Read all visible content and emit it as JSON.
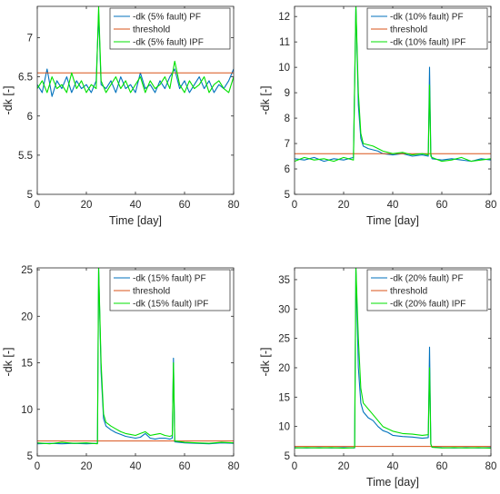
{
  "chart_data": [
    {
      "type": "line",
      "xlabel": "Time [day]",
      "ylabel": "-dk [-]",
      "xlim": [
        0,
        80
      ],
      "ylim": [
        5,
        7.4
      ],
      "xticks": [
        0,
        20,
        40,
        60,
        80
      ],
      "yticks": [
        5,
        5.5,
        6,
        6.5,
        7
      ],
      "grid": false,
      "legend": "top-right",
      "series": [
        {
          "name": "-dk (5% fault) PF",
          "color": "#0072BD",
          "x": [
            0,
            2,
            4,
            6,
            8,
            10,
            12,
            14,
            16,
            18,
            20,
            22,
            24,
            25,
            26,
            28,
            30,
            32,
            34,
            36,
            38,
            40,
            42,
            44,
            46,
            48,
            50,
            52,
            54,
            56,
            58,
            60,
            62,
            64,
            66,
            68,
            70,
            72,
            74,
            76,
            78,
            80
          ],
          "y": [
            6.4,
            6.3,
            6.6,
            6.25,
            6.45,
            6.35,
            6.5,
            6.3,
            6.45,
            6.35,
            6.4,
            6.3,
            6.45,
            7.3,
            6.4,
            6.35,
            6.45,
            6.3,
            6.5,
            6.35,
            6.4,
            6.3,
            6.55,
            6.35,
            6.4,
            6.3,
            6.45,
            6.35,
            6.5,
            6.6,
            6.35,
            6.45,
            6.3,
            6.4,
            6.5,
            6.35,
            6.45,
            6.3,
            6.4,
            6.35,
            6.45,
            6.6
          ]
        },
        {
          "name": "threshold",
          "color": "#D95319",
          "x": [
            0,
            80
          ],
          "y": [
            6.55,
            6.55
          ]
        },
        {
          "name": "-dk (5% fault) IPF",
          "color": "#00E000",
          "x": [
            0,
            2,
            4,
            6,
            8,
            10,
            12,
            14,
            16,
            18,
            20,
            22,
            24,
            25,
            26,
            28,
            30,
            32,
            34,
            36,
            38,
            40,
            42,
            44,
            46,
            48,
            50,
            52,
            54,
            56,
            58,
            60,
            62,
            64,
            66,
            68,
            70,
            72,
            74,
            76,
            78,
            80
          ],
          "y": [
            6.35,
            6.45,
            6.3,
            6.5,
            6.35,
            6.4,
            6.3,
            6.55,
            6.35,
            6.45,
            6.3,
            6.4,
            6.35,
            7.4,
            6.45,
            6.3,
            6.4,
            6.5,
            6.35,
            6.45,
            6.3,
            6.4,
            6.5,
            6.3,
            6.45,
            6.35,
            6.4,
            6.5,
            6.35,
            6.7,
            6.4,
            6.3,
            6.45,
            6.35,
            6.4,
            6.5,
            6.3,
            6.4,
            6.45,
            6.35,
            6.3,
            6.5
          ]
        }
      ]
    },
    {
      "type": "line",
      "xlabel": "Time [day]",
      "ylabel": "-dk [-]",
      "xlim": [
        0,
        80
      ],
      "ylim": [
        5,
        12.4
      ],
      "xticks": [
        0,
        20,
        40,
        60,
        80
      ],
      "yticks": [
        5,
        6,
        7,
        8,
        9,
        10,
        11,
        12
      ],
      "grid": false,
      "legend": "top-right",
      "series": [
        {
          "name": "-dk (10% fault) PF",
          "color": "#0072BD",
          "x": [
            0,
            4,
            8,
            12,
            16,
            20,
            24,
            25,
            26,
            27,
            28,
            30,
            32,
            34,
            36,
            40,
            44,
            48,
            52,
            54.5,
            55,
            55.5,
            56,
            60,
            64,
            68,
            72,
            76,
            80
          ],
          "y": [
            6.4,
            6.35,
            6.45,
            6.3,
            6.4,
            6.35,
            6.45,
            12.4,
            8.5,
            7.2,
            6.9,
            6.8,
            6.75,
            6.7,
            6.6,
            6.55,
            6.6,
            6.5,
            6.55,
            6.5,
            10.0,
            6.6,
            6.4,
            6.35,
            6.4,
            6.35,
            6.3,
            6.4,
            6.35
          ]
        },
        {
          "name": "threshold",
          "color": "#D95319",
          "x": [
            0,
            80
          ],
          "y": [
            6.6,
            6.6
          ]
        },
        {
          "name": "-dk (10% fault) IPF",
          "color": "#00E000",
          "x": [
            0,
            4,
            8,
            12,
            16,
            20,
            24,
            25,
            26,
            27,
            28,
            30,
            32,
            34,
            36,
            40,
            44,
            48,
            52,
            54.5,
            55,
            55.5,
            56,
            60,
            64,
            68,
            72,
            76,
            80
          ],
          "y": [
            6.3,
            6.45,
            6.35,
            6.4,
            6.3,
            6.45,
            6.35,
            12.4,
            9.0,
            7.4,
            7.0,
            6.95,
            6.9,
            6.8,
            6.7,
            6.6,
            6.65,
            6.55,
            6.6,
            6.55,
            9.3,
            6.5,
            6.45,
            6.3,
            6.35,
            6.45,
            6.3,
            6.35,
            6.4
          ]
        }
      ]
    },
    {
      "type": "line",
      "xlabel": "",
      "ylabel": "-dk [-]",
      "xlim": [
        0,
        80
      ],
      "ylim": [
        5,
        25.2
      ],
      "xticks": [
        0,
        20,
        40,
        60,
        80
      ],
      "yticks": [
        5,
        10,
        15,
        20,
        25
      ],
      "grid": false,
      "legend": "top-right",
      "series": [
        {
          "name": "-dk (15% fault) PF",
          "color": "#0072BD",
          "x": [
            0,
            5,
            10,
            15,
            20,
            24.5,
            25,
            26,
            27,
            28,
            30,
            32,
            34,
            36,
            38,
            40,
            42,
            44,
            46,
            48,
            50,
            52,
            54,
            55,
            55.5,
            56,
            60,
            65,
            70,
            75,
            80
          ],
          "y": [
            6.3,
            6.35,
            6.3,
            6.35,
            6.3,
            6.35,
            25.2,
            14.0,
            9.0,
            8.2,
            7.8,
            7.5,
            7.3,
            7.1,
            7.0,
            6.9,
            7.0,
            7.4,
            6.9,
            6.8,
            6.9,
            6.9,
            6.8,
            6.9,
            15.5,
            6.5,
            6.4,
            6.35,
            6.3,
            6.4,
            6.35
          ]
        },
        {
          "name": "threshold",
          "color": "#D95319",
          "x": [
            0,
            80
          ],
          "y": [
            6.6,
            6.6
          ]
        },
        {
          "name": "-dk (15% fault) IPF",
          "color": "#00E000",
          "x": [
            0,
            5,
            10,
            15,
            20,
            24.5,
            25,
            26,
            27,
            28,
            30,
            32,
            34,
            36,
            38,
            40,
            42,
            44,
            46,
            48,
            50,
            52,
            54,
            55,
            55.5,
            56,
            60,
            65,
            70,
            75,
            80
          ],
          "y": [
            6.4,
            6.3,
            6.45,
            6.35,
            6.4,
            6.3,
            25.2,
            15.0,
            9.5,
            8.6,
            8.2,
            7.9,
            7.6,
            7.4,
            7.3,
            7.2,
            7.4,
            7.6,
            7.2,
            7.3,
            7.4,
            7.2,
            7.1,
            7.2,
            15.0,
            6.6,
            6.45,
            6.4,
            6.35,
            6.45,
            6.4
          ]
        }
      ]
    },
    {
      "type": "line",
      "xlabel": "Time [day]",
      "ylabel": "-dk [-]",
      "xlim": [
        0,
        80
      ],
      "ylim": [
        5,
        37
      ],
      "xticks": [
        0,
        20,
        40,
        60,
        80
      ],
      "yticks": [
        5,
        10,
        15,
        20,
        25,
        30,
        35
      ],
      "grid": false,
      "legend": "top-right",
      "series": [
        {
          "name": "-dk (20% fault) PF",
          "color": "#0072BD",
          "x": [
            0,
            5,
            10,
            15,
            20,
            24.5,
            25,
            26,
            27,
            28,
            30,
            32,
            34,
            36,
            38,
            40,
            44,
            48,
            52,
            54.5,
            55,
            55.5,
            56,
            60,
            65,
            70,
            75,
            80
          ],
          "y": [
            6.4,
            6.35,
            6.4,
            6.35,
            6.4,
            6.35,
            37.0,
            20.0,
            14.0,
            12.5,
            11.5,
            11.0,
            10.0,
            9.3,
            9.0,
            8.5,
            8.3,
            8.2,
            8.0,
            8.1,
            23.5,
            7.0,
            6.5,
            6.4,
            6.35,
            6.4,
            6.35,
            6.4
          ]
        },
        {
          "name": "threshold",
          "color": "#D95319",
          "x": [
            0,
            80
          ],
          "y": [
            6.6,
            6.6
          ]
        },
        {
          "name": "-dk (20% fault) IPF",
          "color": "#00E000",
          "x": [
            0,
            5,
            10,
            15,
            20,
            24.5,
            25,
            26,
            27,
            28,
            30,
            32,
            34,
            36,
            38,
            40,
            44,
            48,
            52,
            54.5,
            55,
            55.5,
            56,
            60,
            65,
            70,
            75,
            80
          ],
          "y": [
            6.35,
            6.4,
            6.35,
            6.4,
            6.3,
            6.4,
            37.0,
            25.0,
            16.5,
            14.0,
            13.0,
            12.0,
            11.0,
            10.0,
            9.6,
            9.2,
            8.8,
            8.7,
            8.5,
            8.6,
            20.0,
            7.0,
            6.45,
            6.35,
            6.4,
            6.35,
            6.4,
            6.3
          ]
        }
      ]
    }
  ]
}
